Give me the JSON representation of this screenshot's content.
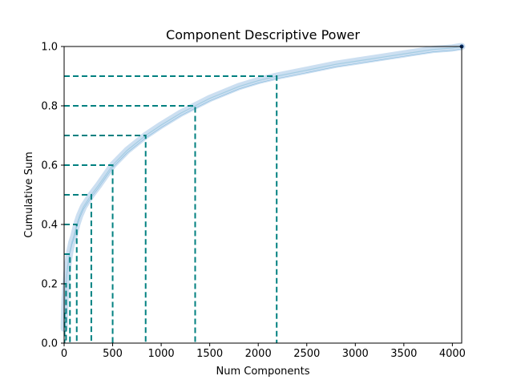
{
  "chart_data": {
    "type": "line",
    "title": "Component Descriptive Power",
    "xlabel": "Num Components",
    "ylabel": "Cumulative Sum",
    "xlim": [
      0,
      4096
    ],
    "ylim": [
      0.0,
      1.0
    ],
    "xticks": [
      0,
      500,
      1000,
      1500,
      2000,
      2500,
      3000,
      3500,
      4000
    ],
    "xtick_labels": [
      "0",
      "500",
      "1000",
      "1500",
      "2000",
      "2500",
      "3000",
      "3500",
      "4000"
    ],
    "yticks": [
      0.0,
      0.2,
      0.4,
      0.6,
      0.8,
      1.0
    ],
    "ytick_labels": [
      "0.0",
      "0.2",
      "0.4",
      "0.6",
      "0.8",
      "1.0"
    ],
    "grid": false,
    "series": [
      {
        "color": "#9ecae1",
        "x": [
          1,
          5,
          10,
          20,
          30,
          40,
          50,
          60,
          80,
          100,
          130,
          160,
          200,
          280,
          350,
          500,
          650,
          840,
          1000,
          1200,
          1350,
          1500,
          1800,
          2000,
          2190,
          2500,
          2800,
          3000,
          3300,
          3500,
          3800,
          4000,
          4096
        ],
        "y": [
          0.05,
          0.11,
          0.15,
          0.2,
          0.24,
          0.27,
          0.29,
          0.31,
          0.34,
          0.36,
          0.4,
          0.43,
          0.46,
          0.5,
          0.53,
          0.6,
          0.65,
          0.7,
          0.735,
          0.775,
          0.8,
          0.825,
          0.865,
          0.885,
          0.9,
          0.92,
          0.94,
          0.95,
          0.965,
          0.975,
          0.99,
          0.995,
          1.0
        ]
      }
    ],
    "thresholds": [
      {
        "y": 0.1,
        "x": 4
      },
      {
        "y": 0.2,
        "x": 20
      },
      {
        "y": 0.3,
        "x": 60
      },
      {
        "y": 0.4,
        "x": 130
      },
      {
        "y": 0.5,
        "x": 280
      },
      {
        "y": 0.6,
        "x": 500
      },
      {
        "y": 0.7,
        "x": 840
      },
      {
        "y": 0.8,
        "x": 1350
      },
      {
        "y": 0.9,
        "x": 2190
      }
    ],
    "threshold_color": "#008080"
  }
}
